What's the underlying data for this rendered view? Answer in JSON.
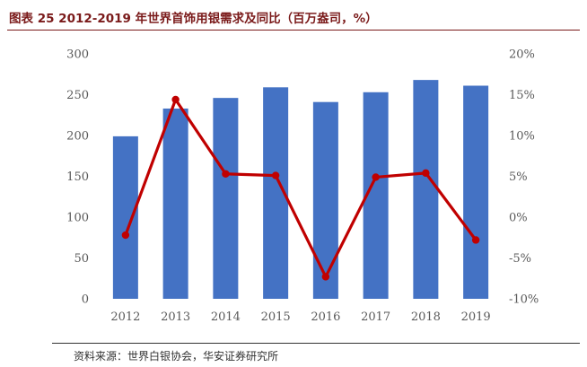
{
  "title": "图表 25 2012-2019 年世界首饰用银需求及同比（百万盎司，%）",
  "source": "资料来源：世界白银协会，华安证券研究所",
  "colors": {
    "bar": "#4472C4",
    "line": "#C00000",
    "title": "#7a1a1a"
  },
  "chart_data": {
    "type": "bar",
    "categories": [
      "2012",
      "2013",
      "2014",
      "2015",
      "2016",
      "2017",
      "2018",
      "2019"
    ],
    "series": [
      {
        "type": "bar",
        "axis": "left",
        "values": [
          199,
          233,
          246,
          259,
          241,
          253,
          268,
          261
        ]
      },
      {
        "type": "line",
        "axis": "right",
        "values": [
          -2.2,
          14.4,
          5.3,
          5.1,
          -7.3,
          4.9,
          5.4,
          -2.8
        ]
      }
    ],
    "ylim": [
      0,
      300
    ],
    "y_ticks": [
      "0",
      "50",
      "100",
      "150",
      "200",
      "250",
      "300"
    ],
    "y2lim": [
      -10,
      20
    ],
    "y2_ticks": [
      "-10%",
      "-5%",
      "0%",
      "5%",
      "10%",
      "15%",
      "20%"
    ],
    "grid": false,
    "legend": "none"
  }
}
